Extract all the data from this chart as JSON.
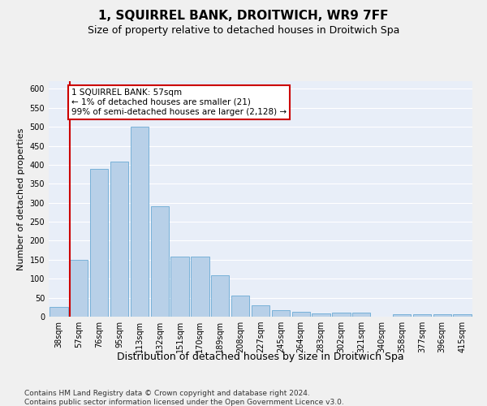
{
  "title": "1, SQUIRREL BANK, DROITWICH, WR9 7FF",
  "subtitle": "Size of property relative to detached houses in Droitwich Spa",
  "xlabel": "Distribution of detached houses by size in Droitwich Spa",
  "ylabel": "Number of detached properties",
  "categories": [
    "38sqm",
    "57sqm",
    "76sqm",
    "95sqm",
    "113sqm",
    "132sqm",
    "151sqm",
    "170sqm",
    "189sqm",
    "208sqm",
    "227sqm",
    "245sqm",
    "264sqm",
    "283sqm",
    "302sqm",
    "321sqm",
    "340sqm",
    "358sqm",
    "377sqm",
    "396sqm",
    "415sqm"
  ],
  "values": [
    25,
    150,
    390,
    408,
    500,
    290,
    158,
    158,
    108,
    55,
    30,
    17,
    12,
    9,
    10,
    10,
    0,
    6,
    6,
    7,
    6
  ],
  "bar_color": "#b8d0e8",
  "bar_edge_color": "#6aaad4",
  "highlight_idx": 1,
  "highlight_color": "#cc0000",
  "annotation_text": "1 SQUIRREL BANK: 57sqm\n← 1% of detached houses are smaller (21)\n99% of semi-detached houses are larger (2,128) →",
  "ylim": [
    0,
    620
  ],
  "yticks": [
    0,
    50,
    100,
    150,
    200,
    250,
    300,
    350,
    400,
    450,
    500,
    550,
    600
  ],
  "footer_line1": "Contains HM Land Registry data © Crown copyright and database right 2024.",
  "footer_line2": "Contains public sector information licensed under the Open Government Licence v3.0.",
  "bg_color": "#e8eef8",
  "grid_color": "#ffffff",
  "fig_bg_color": "#f0f0f0",
  "title_fontsize": 11,
  "subtitle_fontsize": 9,
  "xlabel_fontsize": 9,
  "ylabel_fontsize": 8,
  "tick_fontsize": 7,
  "annotation_fontsize": 7.5,
  "footer_fontsize": 6.5
}
